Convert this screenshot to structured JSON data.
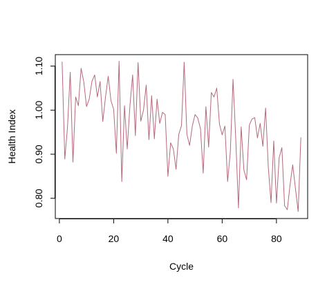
{
  "chart_data": {
    "type": "line",
    "xlabel": "Cycle",
    "ylabel": "Health Index",
    "xlim": [
      -1.5,
      91.5
    ],
    "ylim": [
      0.754,
      1.126
    ],
    "x_ticks": [
      0,
      20,
      40,
      60,
      80
    ],
    "y_ticks": [
      0.8,
      0.9,
      1.0,
      1.1
    ],
    "x_tick_labels": [
      "0",
      "20",
      "40",
      "60",
      "80"
    ],
    "y_tick_labels": [
      "0.80",
      "0.90",
      "1.00",
      "1.10"
    ],
    "grid": false,
    "legend": "none",
    "line_color": "#B5687A",
    "series": [
      {
        "x": [
          1,
          2,
          3,
          4,
          5,
          6,
          7,
          8,
          9,
          10,
          11,
          12,
          13,
          14,
          15,
          16,
          17,
          18,
          19,
          20,
          21,
          22,
          23,
          24,
          25,
          26,
          27,
          28,
          29,
          30,
          31,
          32,
          33,
          34,
          35,
          36,
          37,
          38,
          39,
          40,
          41,
          42,
          43,
          44,
          45,
          46,
          47,
          48,
          49,
          50,
          51,
          52,
          53,
          54,
          55,
          56,
          57,
          58,
          59,
          60,
          61,
          62,
          63,
          64,
          65,
          66,
          67,
          68,
          69,
          70,
          71,
          72,
          73,
          74,
          75,
          76,
          77,
          78,
          79,
          80,
          81,
          82,
          83,
          84,
          85,
          86,
          87,
          88,
          89
        ],
        "values": [
          1.11,
          0.889,
          0.962,
          1.086,
          0.882,
          1.03,
          1.01,
          1.095,
          1.064,
          1.008,
          1.025,
          1.065,
          1.08,
          1.03,
          1.065,
          0.974,
          1.03,
          1.077,
          1.022,
          1.002,
          0.902,
          1.111,
          0.838,
          1.01,
          0.912,
          1.01,
          1.08,
          0.942,
          1.108,
          0.975,
          1.0,
          1.057,
          0.933,
          1.033,
          0.935,
          1.025,
          0.97,
          0.995,
          0.99,
          0.85,
          0.926,
          0.912,
          0.866,
          0.945,
          0.965,
          1.109,
          0.945,
          0.92,
          0.964,
          0.99,
          0.982,
          0.958,
          0.857,
          1.008,
          0.916,
          1.04,
          1.03,
          1.05,
          0.968,
          0.944,
          0.964,
          0.838,
          0.905,
          1.07,
          0.935,
          0.778,
          0.962,
          0.864,
          0.842,
          0.966,
          0.98,
          0.983,
          0.937,
          0.97,
          0.918,
          1.005,
          0.87,
          0.79,
          0.93,
          0.789,
          0.892,
          0.915,
          0.783,
          0.774,
          0.83,
          0.876,
          0.822,
          0.77,
          0.938
        ]
      }
    ]
  }
}
